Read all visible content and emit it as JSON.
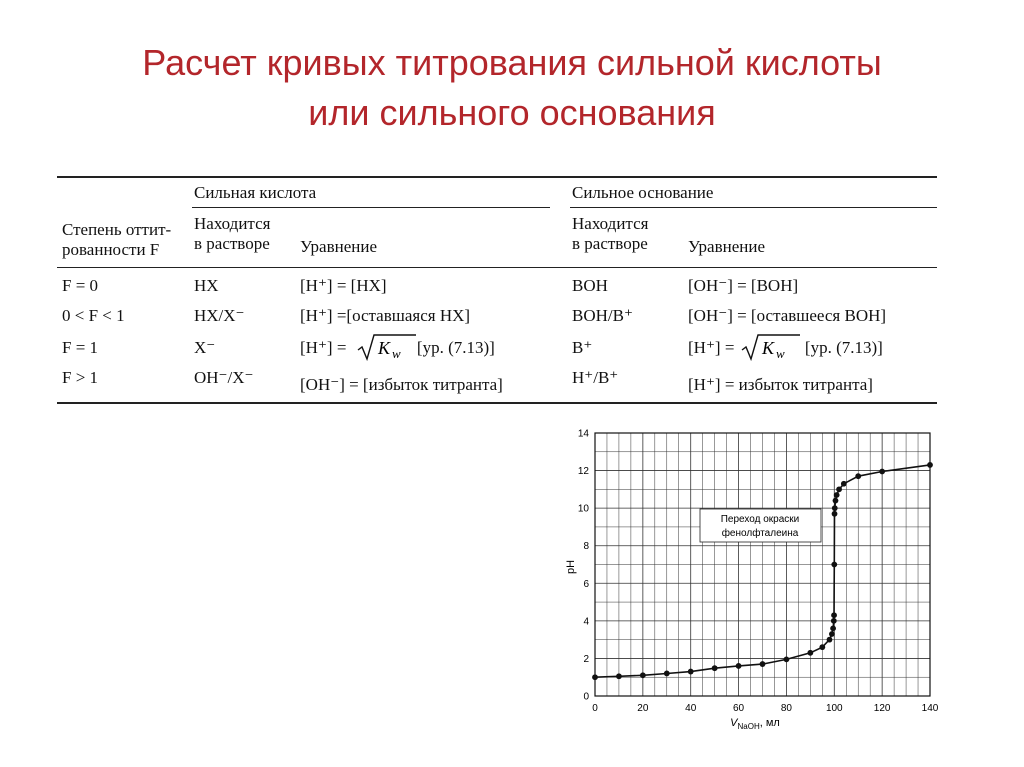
{
  "title_line1": "Расчет кривых титрования сильной кислоты",
  "title_line2": "или сильного основания",
  "table": {
    "header": {
      "col1_line1": "Степень оттит-",
      "col1_line2": "рованности F",
      "acid_group": "Сильная кислота",
      "base_group": "Сильное основание",
      "in_solution_line1": "Находится",
      "in_solution_line2": "в растворе",
      "equation": "Уравнение"
    },
    "rows": [
      {
        "f": "F = 0",
        "acid_sol": "HX",
        "acid_eq": "[H⁺] = [HX]",
        "base_sol": "BOH",
        "base_eq": "[OH⁻] = [BOH]"
      },
      {
        "f": "0 < F < 1",
        "acid_sol": "HX/X⁻",
        "acid_eq": "[H⁺] =[оставшаяся HX]",
        "base_sol": "BOH/B⁺",
        "base_eq": "[OH⁻] = [оставшееся BOH]"
      },
      {
        "f": "F = 1",
        "acid_sol": "X⁻",
        "acid_eq_prefix": "[H⁺] =",
        "acid_eq_k": "K",
        "acid_eq_sub": "w",
        "acid_eq_suffix": "[ур. (7.13)]",
        "base_sol": "B⁺",
        "base_eq_prefix": "[H⁺] =",
        "base_eq_k": "K",
        "base_eq_sub": "w",
        "base_eq_suffix": "[ур. (7.13)]"
      },
      {
        "f": "F > 1",
        "acid_sol": "OH⁻/X⁻",
        "acid_eq": "[OH⁻] = [избыток титранта]",
        "base_sol": "H⁺/B⁺",
        "base_eq": "[H⁺] = избыток титранта]"
      }
    ]
  },
  "chart_data": {
    "type": "line",
    "ylabel": "pH",
    "xlabel_main": "V",
    "xlabel_sub": "NaOH",
    "xlabel_unit": ", мл",
    "xlim": [
      0,
      140
    ],
    "ylim": [
      0,
      14
    ],
    "x_ticks": [
      0,
      20,
      40,
      60,
      80,
      100,
      120,
      140
    ],
    "y_ticks": [
      0,
      2,
      4,
      6,
      8,
      10,
      12,
      14
    ],
    "grid": true,
    "annotation_line1": "Переход окраски",
    "annotation_line2": "фенолфталеина",
    "points": [
      [
        0,
        1.0
      ],
      [
        10,
        1.05
      ],
      [
        20,
        1.1
      ],
      [
        30,
        1.2
      ],
      [
        40,
        1.3
      ],
      [
        50,
        1.48
      ],
      [
        60,
        1.6
      ],
      [
        70,
        1.7
      ],
      [
        80,
        1.95
      ],
      [
        90,
        2.3
      ],
      [
        95,
        2.6
      ],
      [
        98,
        3.0
      ],
      [
        99,
        3.3
      ],
      [
        99.5,
        3.6
      ],
      [
        99.8,
        4.0
      ],
      [
        99.9,
        4.3
      ],
      [
        100,
        7.0
      ],
      [
        100.1,
        9.7
      ],
      [
        100.2,
        10.0
      ],
      [
        100.5,
        10.4
      ],
      [
        101,
        10.7
      ],
      [
        102,
        11.0
      ],
      [
        104,
        11.3
      ],
      [
        110,
        11.7
      ],
      [
        120,
        11.95
      ],
      [
        140,
        12.3
      ]
    ]
  }
}
